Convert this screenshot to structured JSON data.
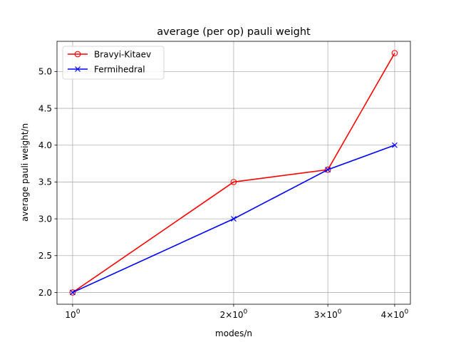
{
  "chart_data": {
    "type": "line",
    "title": "average (per op) pauli weight",
    "xlabel": "modes/n",
    "ylabel": "average pauli weight/n",
    "x_scale": "log",
    "x": [
      1,
      2,
      3,
      4
    ],
    "xticks": [
      {
        "value": 1,
        "base": "10",
        "exp": "0"
      },
      {
        "value": 2,
        "base": "2×10",
        "exp": "0"
      },
      {
        "value": 3,
        "base": "3×10",
        "exp": "0"
      },
      {
        "value": 4,
        "base": "4×10",
        "exp": "0"
      }
    ],
    "yticks": [
      "2.0",
      "2.5",
      "3.0",
      "3.5",
      "4.0",
      "4.5",
      "5.0"
    ],
    "ylim": [
      1.84,
      5.41
    ],
    "grid": true,
    "legend_position": "upper left",
    "series": [
      {
        "name": "Bravyi-Kitaev",
        "color": "#ff0000",
        "marker": "circle-open",
        "values": [
          2.0,
          3.5,
          3.667,
          5.25
        ]
      },
      {
        "name": "Fermihedral",
        "color": "#0000ff",
        "marker": "x",
        "values": [
          2.0,
          3.0,
          3.667,
          4.0
        ]
      }
    ]
  }
}
